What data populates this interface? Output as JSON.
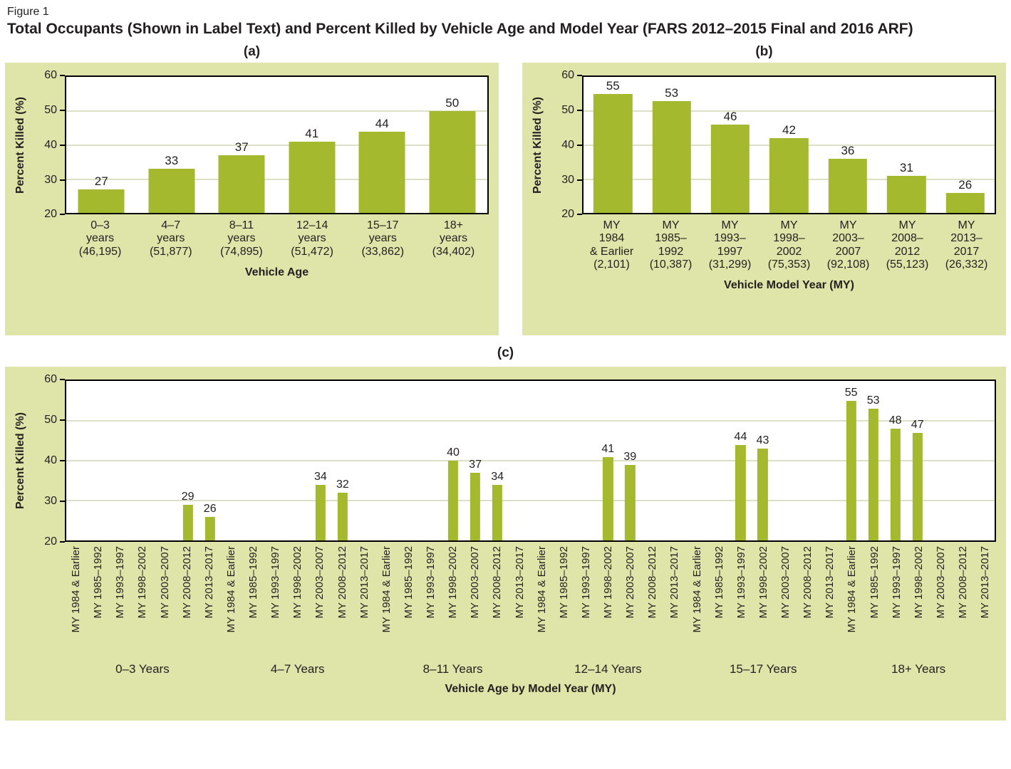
{
  "figure": {
    "label": "Figure 1",
    "title": "Total Occupants (Shown in Label Text) and Percent Killed by Vehicle Age and Model Year (FARS 2012–2015 Final and 2016 ARF)"
  },
  "colors": {
    "panel_bg": "#dfe5a9",
    "bar": "#a5b92f",
    "gridline": "#dce0c6"
  },
  "chart_data": [
    {
      "id": "a",
      "panel_label": "(a)",
      "type": "bar",
      "ylabel": "Percent Killed (%)",
      "xlabel": "Vehicle Age",
      "ylim": [
        20,
        60
      ],
      "yticks": [
        20,
        30,
        40,
        50,
        60
      ],
      "gridlines": [
        30,
        40,
        50
      ],
      "categories": [
        "0–3\nyears\n(46,195)",
        "4–7\nyears\n(51,877)",
        "8–11\nyears\n(74,895)",
        "12–14\nyears\n(51,472)",
        "15–17\nyears\n(33,862)",
        "18+\nyears\n(34,402)"
      ],
      "values": [
        27,
        33,
        37,
        41,
        44,
        50
      ]
    },
    {
      "id": "b",
      "panel_label": "(b)",
      "type": "bar",
      "ylabel": "Percent Killed (%)",
      "xlabel": "Vehicle Model Year (MY)",
      "ylim": [
        20,
        60
      ],
      "yticks": [
        20,
        30,
        40,
        50,
        60
      ],
      "gridlines": [
        30,
        40,
        50
      ],
      "categories": [
        "MY\n1984\n& Earlier\n(2,101)",
        "MY\n1985–\n1992\n(10,387)",
        "MY\n1993–\n1997\n(31,299)",
        "MY\n1998–\n2002\n(75,353)",
        "MY\n2003–\n2007\n(92,108)",
        "MY\n2008–\n2012\n(55,123)",
        "MY\n2013–\n2017\n(26,332)"
      ],
      "values": [
        55,
        53,
        46,
        42,
        36,
        31,
        26
      ]
    },
    {
      "id": "c",
      "panel_label": "(c)",
      "type": "bar",
      "ylabel": "Percent Killed (%)",
      "xlabel": "Vehicle Age by Model Year (MY)",
      "ylim": [
        20,
        60
      ],
      "yticks": [
        20,
        30,
        40,
        50,
        60
      ],
      "gridlines": [
        30,
        40,
        50
      ],
      "model_years": [
        "MY 1984 & Earlier",
        "MY 1985–1992",
        "MY 1993–1997",
        "MY 1998–2002",
        "MY 2003–2007",
        "MY 2008–2012",
        "MY 2013–2017"
      ],
      "groups": [
        {
          "label": "0–3 Years",
          "values": [
            null,
            null,
            null,
            null,
            null,
            29,
            26
          ]
        },
        {
          "label": "4–7 Years",
          "values": [
            null,
            null,
            null,
            null,
            34,
            32,
            null
          ]
        },
        {
          "label": "8–11 Years",
          "values": [
            null,
            null,
            null,
            40,
            37,
            34,
            null
          ]
        },
        {
          "label": "12–14 Years",
          "values": [
            null,
            null,
            null,
            41,
            39,
            null,
            null
          ]
        },
        {
          "label": "15–17 Years",
          "values": [
            null,
            null,
            44,
            43,
            null,
            null,
            null
          ]
        },
        {
          "label": "18+ Years",
          "values": [
            55,
            53,
            48,
            47,
            null,
            null,
            null
          ]
        }
      ]
    }
  ]
}
